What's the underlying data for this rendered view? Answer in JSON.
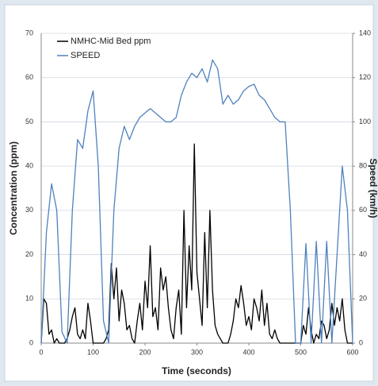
{
  "chart_data": {
    "type": "line",
    "x_label": "Time (seconds)",
    "y_label": "Concentration (ppm)",
    "y2_label": "Speed (km/h)",
    "xlim": [
      0,
      600
    ],
    "xticks": [
      0,
      100,
      200,
      300,
      400,
      500,
      600
    ],
    "ylim": [
      0,
      70
    ],
    "yticks": [
      0,
      10,
      20,
      30,
      40,
      50,
      60,
      70
    ],
    "y2lim": [
      0,
      140
    ],
    "y2ticks": [
      0,
      20,
      40,
      60,
      80,
      100,
      120,
      140
    ],
    "grid": true,
    "legend": "upper left",
    "series": [
      {
        "name": "NMHC-Mid Bed ppm",
        "color": "#000000",
        "x": [
          0,
          5,
          10,
          15,
          20,
          25,
          30,
          35,
          40,
          45,
          50,
          55,
          60,
          65,
          70,
          75,
          80,
          85,
          90,
          95,
          100,
          105,
          110,
          115,
          120,
          125,
          130,
          135,
          140,
          145,
          150,
          155,
          160,
          165,
          170,
          175,
          180,
          185,
          190,
          195,
          200,
          205,
          210,
          215,
          220,
          225,
          230,
          235,
          240,
          245,
          250,
          255,
          260,
          265,
          270,
          275,
          280,
          285,
          290,
          295,
          300,
          305,
          310,
          315,
          320,
          325,
          330,
          335,
          340,
          345,
          350,
          355,
          360,
          365,
          370,
          375,
          380,
          385,
          390,
          395,
          400,
          405,
          410,
          415,
          420,
          425,
          430,
          435,
          440,
          445,
          450,
          455,
          460,
          465,
          470,
          475,
          480,
          485,
          490,
          495,
          500,
          505,
          510,
          515,
          520,
          525,
          530,
          535,
          540,
          545,
          550,
          555,
          560,
          565,
          570,
          575,
          580,
          585,
          590,
          595,
          600
        ],
        "values": [
          0,
          10,
          9,
          2,
          3,
          0,
          1,
          0,
          0,
          0,
          1,
          3,
          6,
          8,
          2,
          1,
          3,
          1,
          9,
          5,
          0,
          0,
          0,
          0,
          0,
          1,
          3,
          18,
          10,
          17,
          5,
          12,
          9,
          3,
          4,
          1,
          0,
          5,
          9,
          3,
          14,
          8,
          22,
          6,
          8,
          3,
          17,
          12,
          15,
          8,
          3,
          1,
          8,
          12,
          2,
          30,
          8,
          22,
          12,
          45,
          16,
          10,
          4,
          25,
          8,
          30,
          12,
          4,
          2,
          1,
          0,
          0,
          0,
          2,
          5,
          10,
          8,
          13,
          9,
          4,
          6,
          3,
          10,
          8,
          5,
          12,
          4,
          9,
          2,
          1,
          3,
          1,
          0,
          0,
          0,
          0,
          0,
          0,
          0,
          0,
          0,
          4,
          2,
          8,
          3,
          0,
          2,
          1,
          5,
          4,
          1,
          3,
          9,
          4,
          8,
          5,
          10,
          3,
          0,
          0,
          0
        ]
      },
      {
        "name": "SPEED",
        "color": "#4f81bd",
        "axis": "y2",
        "x": [
          0,
          10,
          20,
          30,
          40,
          50,
          60,
          70,
          80,
          90,
          100,
          110,
          120,
          130,
          140,
          150,
          160,
          170,
          180,
          190,
          200,
          210,
          220,
          230,
          240,
          250,
          260,
          270,
          280,
          290,
          300,
          310,
          320,
          330,
          340,
          350,
          360,
          370,
          380,
          390,
          400,
          410,
          420,
          430,
          440,
          450,
          460,
          470,
          480,
          490,
          500,
          510,
          520,
          530,
          540,
          550,
          560,
          570,
          580,
          590,
          600
        ],
        "values": [
          0,
          50,
          72,
          60,
          5,
          0,
          60,
          92,
          88,
          105,
          114,
          80,
          10,
          0,
          60,
          88,
          98,
          92,
          98,
          102,
          104,
          106,
          104,
          102,
          100,
          100,
          102,
          112,
          118,
          122,
          120,
          124,
          118,
          128,
          124,
          108,
          112,
          108,
          110,
          114,
          116,
          117,
          112,
          110,
          106,
          102,
          100,
          100,
          60,
          0,
          0,
          45,
          0,
          46,
          0,
          46,
          0,
          40,
          80,
          60,
          0
        ]
      }
    ]
  }
}
